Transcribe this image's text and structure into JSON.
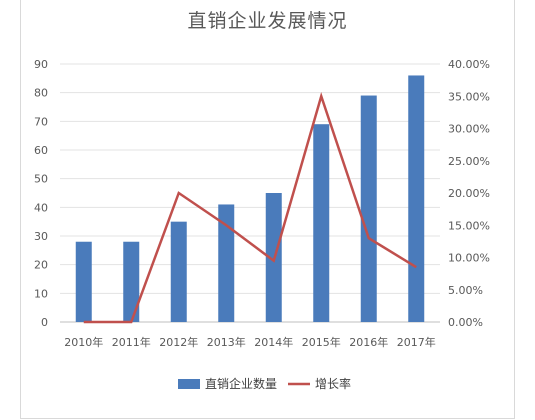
{
  "chart_data": {
    "type": "bar",
    "title": "直销企业发展情况",
    "categories": [
      "2010年",
      "2011年",
      "2012年",
      "2013年",
      "2014年",
      "2015年",
      "2016年",
      "2017年"
    ],
    "series": [
      {
        "name": "直销企业数量",
        "type": "bar",
        "axis": "left",
        "color": "#4a7bbb",
        "values": [
          28,
          28,
          35,
          41,
          45,
          69,
          79,
          86
        ]
      },
      {
        "name": "增长率",
        "type": "line",
        "axis": "right",
        "color": "#c0504d",
        "values": [
          0,
          0,
          20.0,
          15.0,
          9.5,
          35.0,
          13.0,
          8.5
        ]
      }
    ],
    "y_left": {
      "min": 0,
      "max": 90,
      "step": 10,
      "tick_labels": [
        "0",
        "10",
        "20",
        "30",
        "40",
        "50",
        "60",
        "70",
        "80",
        "90"
      ]
    },
    "y_right": {
      "min": 0,
      "max": 40,
      "step": 5,
      "tick_labels": [
        "0.00%",
        "5.00%",
        "10.00%",
        "15.00%",
        "20.00%",
        "25.00%",
        "30.00%",
        "35.00%",
        "40.00%"
      ]
    },
    "grid": true,
    "legend_position": "bottom"
  }
}
